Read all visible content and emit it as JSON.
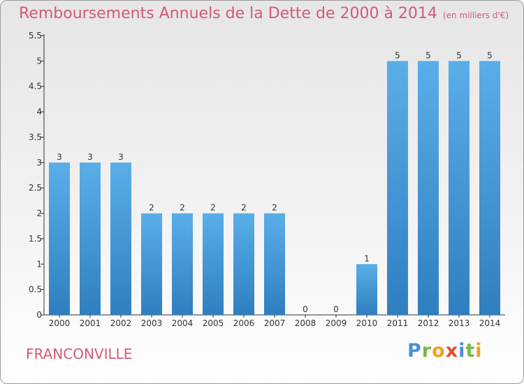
{
  "header": {
    "title": "Remboursements Annuels de la Dette de 2000 à 2014",
    "unit": "(en milliers d'€)"
  },
  "footer": {
    "city": "FRANCONVILLE",
    "logo": "Proxiti"
  },
  "colors": {
    "bar_top": "#5aaee8",
    "bar_bottom": "#2f7fc0",
    "title": "#d35a78",
    "logo_letters": [
      "#4a90d9",
      "#7ab648",
      "#f0a020",
      "#e04e2c",
      "#4a90d9",
      "#7ab648",
      "#f0a020"
    ]
  },
  "chart_data": {
    "type": "bar",
    "categories": [
      "2000",
      "2001",
      "2002",
      "2003",
      "2004",
      "2005",
      "2006",
      "2007",
      "2008",
      "2009",
      "2010",
      "2011",
      "2012",
      "2013",
      "2014"
    ],
    "values": [
      3,
      3,
      3,
      2,
      2,
      2,
      2,
      2,
      0,
      0,
      1,
      5,
      5,
      5,
      5
    ],
    "data_labels": [
      "3",
      "3",
      "3",
      "2",
      "2",
      "2",
      "2",
      "2",
      "0",
      "0",
      "1",
      "5",
      "5",
      "5",
      "5"
    ],
    "yticks": [
      "0",
      "0.5",
      "1",
      "1.5",
      "2",
      "2.5",
      "3",
      "3.5",
      "4",
      "4.5",
      "5",
      "5.5"
    ],
    "ylim": [
      0,
      5.5
    ],
    "grid": false,
    "legend": "none"
  }
}
